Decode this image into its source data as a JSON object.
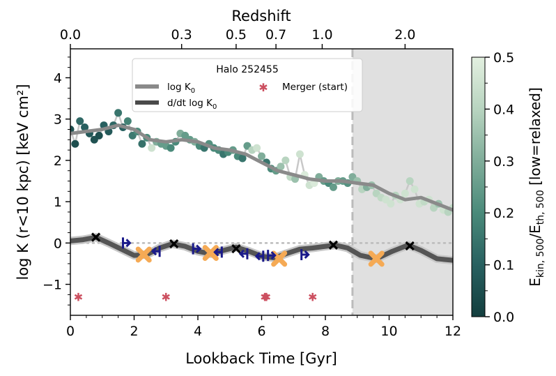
{
  "chart_data": {
    "type": "line",
    "title": "Halo 252455",
    "xlabel": "Lookback Time [Gyr]",
    "ylabel": "log K (r<10 kpc) [keV cm²]",
    "xlim": [
      0,
      12
    ],
    "ylim": [
      -1.75,
      4.7
    ],
    "x_ticks": [
      "0",
      "2",
      "4",
      "6",
      "8",
      "10",
      "12"
    ],
    "y_ticks": [
      "4",
      "3",
      "2",
      "1",
      "0",
      "−1"
    ],
    "top_axis": {
      "label": "Redshift",
      "ticks": [
        {
          "label": "0.0",
          "t": 0.0
        },
        {
          "label": "0.3",
          "t": 3.49
        },
        {
          "label": "0.5",
          "t": 5.2
        },
        {
          "label": "0.7",
          "t": 6.45
        },
        {
          "label": "1.0",
          "t": 7.9
        },
        {
          "label": "2.0",
          "t": 10.5
        }
      ]
    },
    "colorbar": {
      "label": "E_kin,500/E_th,500 [low=relaxed]",
      "label_main": "E",
      "label_sub1": "kin, 500",
      "label_mid": "/E",
      "label_sub2": "th, 500",
      "label_tail": " [low=relaxed]",
      "min": 0.0,
      "max": 0.5,
      "ticks": [
        "0.0",
        "0.1",
        "0.2",
        "0.3",
        "0.4",
        "0.5"
      ],
      "colors": [
        "#133e3e",
        "#286060",
        "#4a8a7a",
        "#80ad9a",
        "#b8d4c0",
        "#e3f0e0"
      ]
    },
    "legend": {
      "title": "Halo 252455",
      "entries": [
        {
          "label_main": "log K",
          "label_sub": "0",
          "color": "#8a8a8a"
        },
        {
          "label_main": "d/dt log K",
          "label_sub": "0",
          "color": "#4a4a4a"
        },
        {
          "label_main": "Merger (start)",
          "label_sub": "",
          "color": "#cc5060"
        }
      ]
    },
    "shaded_region": {
      "start": 8.85,
      "end": 12,
      "color": "#e0e0e0"
    },
    "series": [
      {
        "name": "log K0 (raw)",
        "x": [
          0.0,
          0.15,
          0.3,
          0.45,
          0.6,
          0.75,
          0.9,
          1.05,
          1.2,
          1.35,
          1.5,
          1.65,
          1.8,
          1.95,
          2.1,
          2.25,
          2.4,
          2.55,
          2.7,
          2.85,
          3.0,
          3.15,
          3.3,
          3.45,
          3.6,
          3.75,
          3.9,
          4.05,
          4.2,
          4.35,
          4.5,
          4.65,
          4.8,
          4.95,
          5.1,
          5.25,
          5.4,
          5.55,
          5.7,
          5.85,
          6.0,
          6.15,
          6.3,
          6.45,
          6.6,
          6.75,
          6.9,
          7.05,
          7.2,
          7.35,
          7.5,
          7.65,
          7.8,
          7.95,
          8.1,
          8.25,
          8.4,
          8.55,
          8.7,
          8.85,
          9.0,
          9.15,
          9.3,
          9.45,
          9.6,
          9.75,
          9.9,
          10.05,
          10.2,
          10.35,
          10.5,
          10.65,
          10.8,
          10.95,
          11.1,
          11.25,
          11.4,
          11.55,
          11.7,
          11.85,
          12.0
        ],
        "y": [
          2.75,
          2.4,
          2.95,
          2.8,
          2.65,
          2.5,
          2.6,
          2.85,
          2.7,
          2.85,
          3.15,
          2.8,
          2.95,
          2.6,
          2.7,
          2.4,
          2.55,
          2.3,
          2.45,
          2.4,
          2.35,
          2.3,
          2.45,
          2.65,
          2.6,
          2.5,
          2.45,
          2.35,
          2.3,
          2.4,
          2.3,
          2.25,
          2.15,
          2.2,
          2.25,
          2.1,
          2.05,
          2.35,
          2.25,
          2.3,
          2.1,
          1.95,
          1.8,
          1.75,
          1.85,
          2.0,
          1.6,
          1.55,
          2.15,
          1.65,
          1.4,
          1.45,
          1.6,
          1.5,
          1.45,
          1.35,
          1.5,
          1.5,
          1.45,
          1.6,
          1.5,
          1.3,
          1.35,
          1.4,
          1.2,
          1.1,
          1.05,
          0.95,
          1.15,
          1.05,
          1.2,
          1.5,
          1.3,
          0.95,
          1.0,
          1.05,
          0.85,
          0.95,
          0.8,
          0.75,
          0.85
        ],
        "c": [
          0.05,
          0.05,
          0.12,
          0.1,
          0.08,
          0.06,
          0.05,
          0.1,
          0.08,
          0.12,
          0.15,
          0.1,
          0.18,
          0.16,
          0.2,
          0.14,
          0.2,
          0.45,
          0.3,
          0.25,
          0.25,
          0.2,
          0.2,
          0.3,
          0.25,
          0.25,
          0.3,
          0.2,
          0.15,
          0.22,
          0.2,
          0.2,
          0.15,
          0.2,
          0.25,
          0.2,
          0.15,
          0.25,
          0.4,
          0.45,
          0.3,
          0.15,
          0.2,
          0.25,
          0.35,
          0.4,
          0.42,
          0.35,
          0.45,
          0.48,
          0.45,
          0.48,
          0.3,
          0.25,
          0.2,
          0.25,
          0.3,
          0.25,
          0.22,
          0.3,
          0.35,
          0.4,
          0.3,
          0.35,
          0.4,
          0.42,
          0.45,
          0.45,
          0.4,
          0.45,
          0.45,
          0.4,
          0.45,
          0.45,
          0.42,
          0.45,
          0.4,
          0.35,
          0.45,
          0.4,
          0.42
        ]
      },
      {
        "name": "log K0",
        "x": [
          0,
          0.5,
          1,
          1.5,
          2,
          2.5,
          3,
          3.5,
          4,
          4.5,
          5,
          5.5,
          6,
          6.5,
          7,
          7.5,
          8,
          8.5,
          9,
          9.5,
          10,
          10.5,
          11,
          11.5,
          12
        ],
        "y": [
          2.65,
          2.7,
          2.75,
          2.85,
          2.75,
          2.5,
          2.45,
          2.5,
          2.45,
          2.3,
          2.25,
          2.15,
          1.95,
          1.75,
          1.65,
          1.55,
          1.5,
          1.5,
          1.45,
          1.4,
          1.2,
          1.05,
          1.1,
          0.95,
          0.8
        ]
      },
      {
        "name": "d/dt log K0",
        "x": [
          0,
          0.4,
          0.8,
          1.2,
          1.6,
          2.0,
          2.4,
          2.8,
          3.2,
          3.6,
          4.0,
          4.4,
          4.8,
          5.2,
          5.6,
          6.0,
          6.4,
          6.8,
          7.2,
          7.6,
          8.0,
          8.3,
          8.7,
          9.1,
          9.6,
          10.1,
          10.6,
          11.0,
          11.5,
          12.0
        ],
        "y": [
          0.05,
          0.08,
          0.14,
          0.0,
          -0.15,
          -0.3,
          -0.28,
          -0.12,
          -0.02,
          -0.08,
          -0.2,
          -0.26,
          -0.18,
          -0.1,
          -0.2,
          -0.32,
          -0.36,
          -0.25,
          -0.15,
          -0.12,
          -0.08,
          -0.05,
          -0.12,
          -0.3,
          -0.38,
          -0.2,
          -0.05,
          -0.18,
          -0.38,
          -0.42
        ]
      }
    ],
    "markers": {
      "peaks": [
        [
          0.8,
          0.14
        ],
        [
          3.25,
          -0.02
        ],
        [
          5.2,
          -0.14
        ],
        [
          8.25,
          -0.05
        ],
        [
          10.65,
          -0.07
        ]
      ],
      "troughs": [
        [
          2.3,
          -0.28
        ],
        [
          4.4,
          -0.24
        ],
        [
          6.55,
          -0.38
        ],
        [
          9.6,
          -0.38
        ]
      ],
      "segment_starts": [
        [
          1.65,
          0.0
        ],
        [
          3.85,
          -0.14
        ],
        [
          6.2,
          -0.3
        ],
        [
          7.25,
          -0.28
        ]
      ],
      "segment_ends": [
        [
          2.8,
          -0.2
        ],
        [
          4.75,
          -0.22
        ],
        [
          5.55,
          -0.26
        ],
        [
          6.05,
          -0.32
        ]
      ],
      "mergers": [
        [
          0.25,
          -1.3
        ],
        [
          3.0,
          -1.3
        ],
        [
          6.1,
          -1.3
        ],
        [
          6.15,
          -1.3
        ],
        [
          7.6,
          -1.3
        ]
      ]
    }
  }
}
